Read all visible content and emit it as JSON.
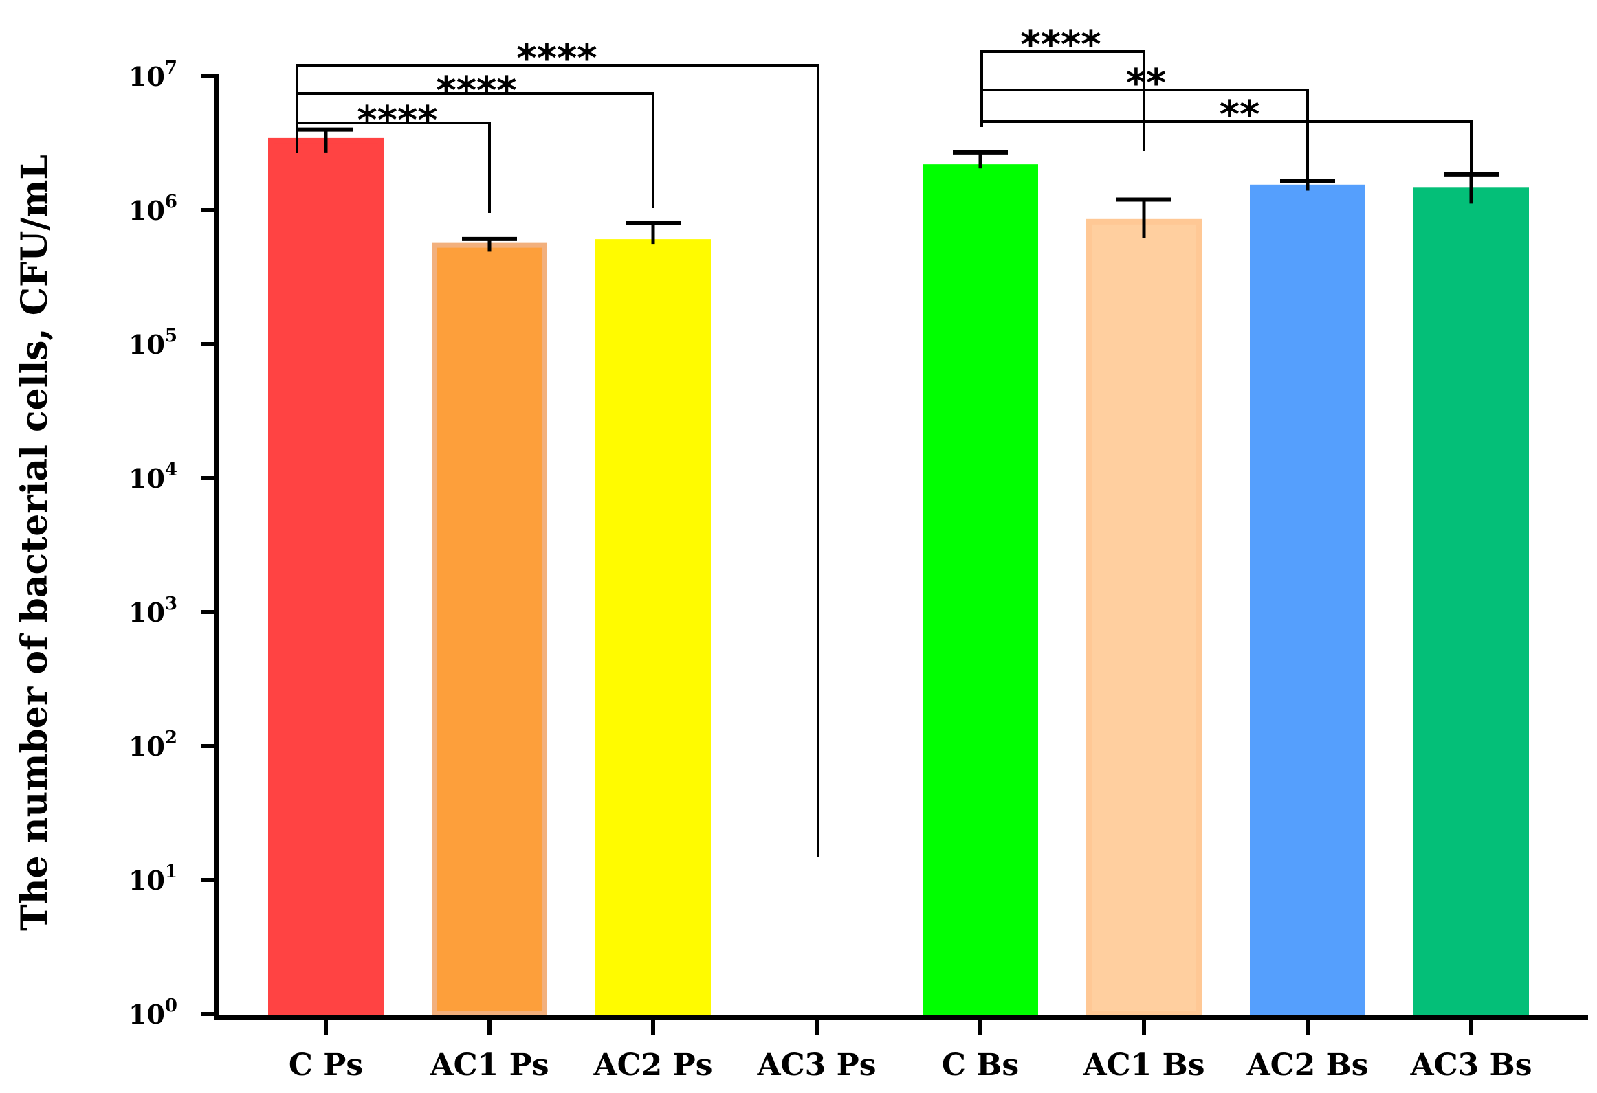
{
  "chart_data": {
    "type": "bar",
    "title": "",
    "xlabel": "",
    "ylabel": "The number of bacterial cells, CFU/mL",
    "yscale": "log10",
    "ylim": [
      1,
      10000000
    ],
    "yticks": [
      {
        "value": 1,
        "base": "10",
        "exp": "0"
      },
      {
        "value": 10,
        "base": "10",
        "exp": "1"
      },
      {
        "value": 100,
        "base": "10",
        "exp": "2"
      },
      {
        "value": 1000,
        "base": "10",
        "exp": "3"
      },
      {
        "value": 10000,
        "base": "10",
        "exp": "4"
      },
      {
        "value": 100000,
        "base": "10",
        "exp": "5"
      },
      {
        "value": 1000000,
        "base": "10",
        "exp": "6"
      },
      {
        "value": 10000000,
        "base": "10",
        "exp": "7"
      }
    ],
    "categories": [
      "C Ps",
      "AC1 Ps",
      "AC2 Ps",
      "AC3 Ps",
      "C Bs",
      "AC1 Bs",
      "AC2 Bs",
      "AC3 Bs"
    ],
    "values": [
      3300000,
      550000,
      580000,
      null,
      2100000,
      820000,
      1480000,
      1420000
    ],
    "error_upper": [
      4000000,
      610000,
      800000,
      null,
      2700000,
      1200000,
      1650000,
      1850000
    ],
    "error_lower": [
      2700000,
      490000,
      560000,
      null,
      2050000,
      620000,
      1400000,
      1120000
    ],
    "colors": [
      "#ff4343",
      "#fd9f3b",
      "#fffb00",
      "#ffffff",
      "#00ff00",
      "#ffcf9f",
      "#559ffd",
      "#04bf78"
    ],
    "edge_colors": [
      "#ff4343",
      "#f2b07d",
      "#fffb00",
      "#ffffff",
      "#00ff00",
      "#ffc895",
      "#559ffd",
      "#04bf78"
    ],
    "significance": [
      {
        "from": 0,
        "to": 1,
        "label": "****"
      },
      {
        "from": 0,
        "to": 2,
        "label": "****"
      },
      {
        "from": 0,
        "to": 3,
        "label": "****"
      },
      {
        "from": 4,
        "to": 5,
        "label": "****"
      },
      {
        "from": 4,
        "to": 6,
        "label": "**"
      },
      {
        "from": 4,
        "to": 7,
        "label": "**"
      }
    ]
  }
}
